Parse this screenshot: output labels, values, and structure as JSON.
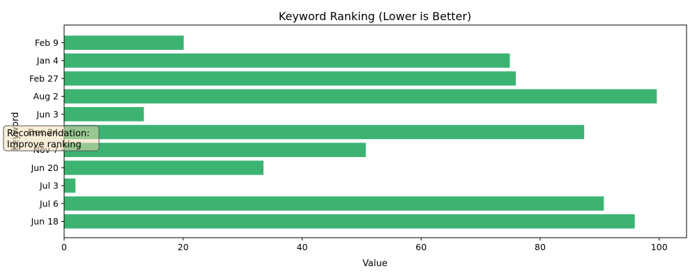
{
  "chart_data": {
    "type": "bar",
    "orientation": "horizontal",
    "title": "Keyword Ranking (Lower is Better)",
    "xlabel": "Value",
    "ylabel": "Keyword",
    "categories": [
      "Feb 9",
      "Jan 4",
      "Feb 27",
      "Aug 2",
      "Jun 3",
      "Dec 24",
      "Nov 7",
      "Jun 20",
      "Jul 3",
      "Jul 6",
      "Jun 18"
    ],
    "values": [
      20.1,
      74.9,
      75.9,
      99.6,
      13.4,
      87.4,
      50.7,
      33.5,
      1.9,
      90.7,
      95.9
    ],
    "xlim": [
      0,
      104.6
    ],
    "xticks": [
      0,
      20,
      40,
      60,
      80,
      100
    ],
    "bar_color": "#3cb371",
    "grid": false,
    "annotation": {
      "lines": [
        "Recommendation:",
        "Improve ranking"
      ],
      "background": "#f5deb3",
      "border": "#555555"
    }
  }
}
